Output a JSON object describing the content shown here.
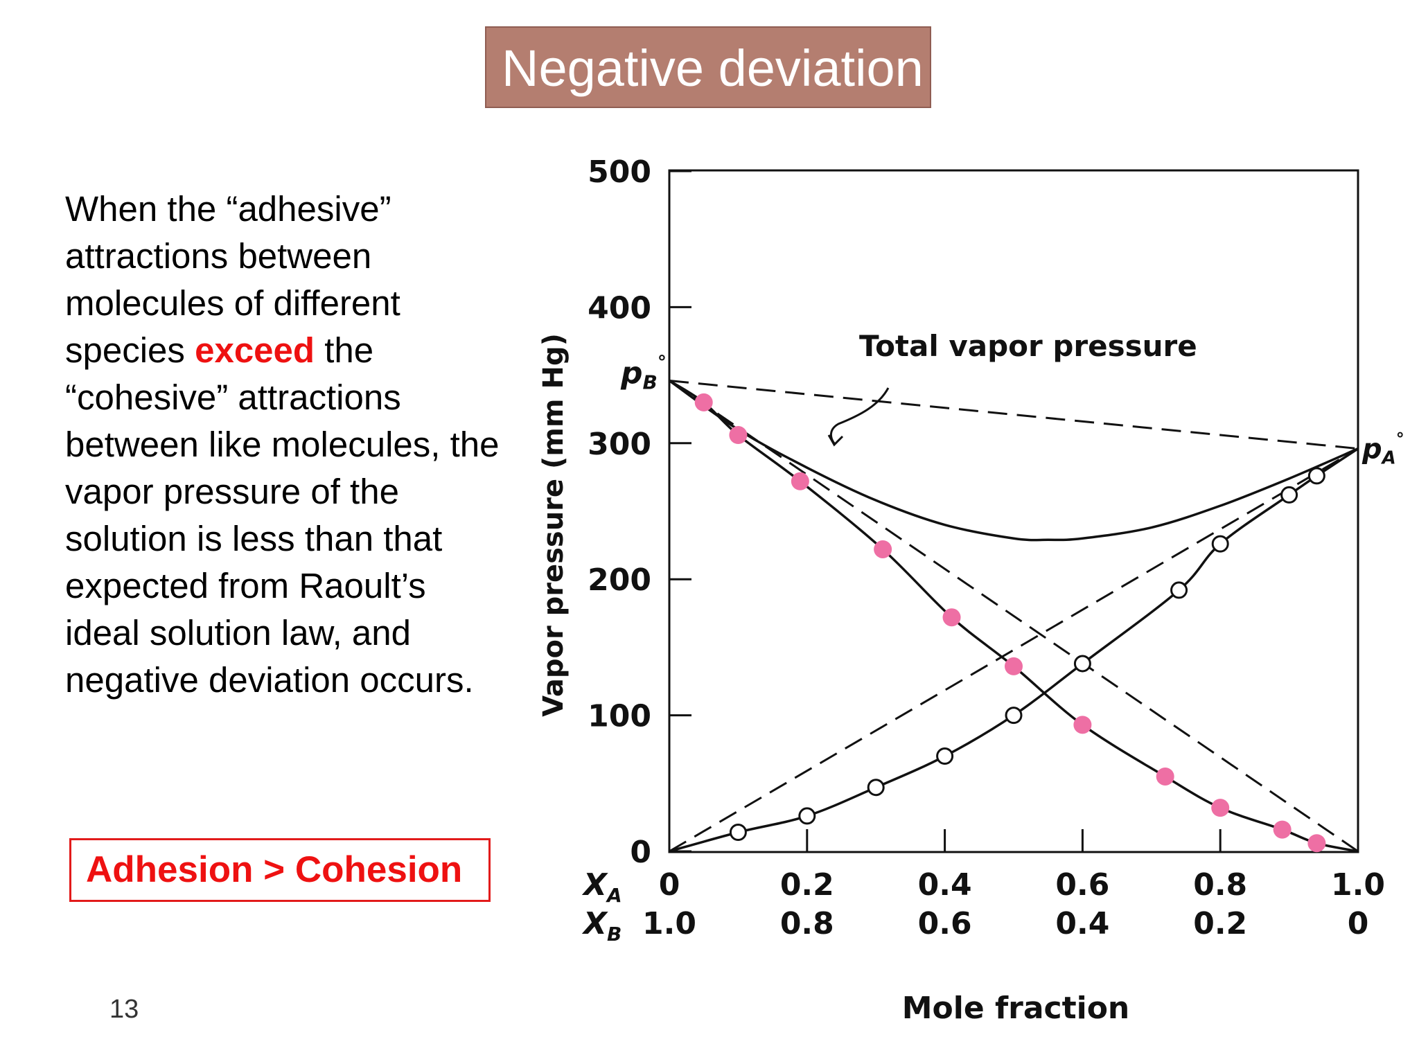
{
  "slide": {
    "title": "Negative deviation",
    "body": {
      "part1": "When the “adhesive” attractions between molecules of different species ",
      "highlight": "exceed",
      "part2": " the “cohesive” attractions between like molecules, the vapor pressure of the solution is less than that expected from Raoult’s ideal solution law, and negative deviation occurs."
    },
    "callout": "Adhesion > Cohesion",
    "page_number": "13"
  },
  "colors": {
    "title_bg": "#b47e70",
    "highlight": "#ee1111",
    "marker_pink": "#ee6fa4",
    "line": "#111111"
  },
  "chart_data": {
    "type": "line",
    "ylabel": "Vapor pressure (mm Hg)",
    "xlabel": "Mole fraction",
    "ylim": [
      0,
      500
    ],
    "xlim": [
      0,
      1
    ],
    "yticks": [
      "0",
      "100",
      "200",
      "300",
      "400",
      "500"
    ],
    "x_rows": [
      {
        "label": "X",
        "sub": "A",
        "ticks": [
          "0",
          "0.2",
          "0.4",
          "0.6",
          "0.8",
          "1.0"
        ]
      },
      {
        "label": "X",
        "sub": "B",
        "ticks": [
          "1.0",
          "0.8",
          "0.6",
          "0.4",
          "0.2",
          "0"
        ]
      }
    ],
    "annotations": {
      "total_label": "Total vapor pressure",
      "pB": {
        "main": "p",
        "sub": "B",
        "sup": "°",
        "value": 346
      },
      "pA": {
        "main": "p",
        "sub": "A",
        "sup": "°",
        "value": 296
      }
    },
    "series": [
      {
        "style": "ideal-dashed",
        "x": [
          0,
          1
        ],
        "values": [
          346,
          296
        ]
      },
      {
        "style": "ideal-dashed",
        "x": [
          0,
          1
        ],
        "values": [
          346,
          0
        ]
      },
      {
        "style": "ideal-dashed",
        "x": [
          0,
          1
        ],
        "values": [
          0,
          296
        ]
      },
      {
        "style": "solid",
        "x": [
          0,
          0.1,
          0.2,
          0.3,
          0.4,
          0.5,
          0.55,
          0.6,
          0.7,
          0.8,
          0.9,
          1.0
        ],
        "values": [
          346,
          310,
          282,
          258,
          240,
          230,
          229,
          230,
          238,
          254,
          274,
          296
        ]
      },
      {
        "style": "solid-pink-markers",
        "x": [
          0.05,
          0.1,
          0.19,
          0.31,
          0.41,
          0.5,
          0.6,
          0.72,
          0.8,
          0.89,
          0.94
        ],
        "values": [
          330,
          306,
          272,
          222,
          172,
          136,
          93,
          55,
          32,
          16,
          6
        ]
      },
      {
        "style": "solid-open-markers",
        "x": [
          0.1,
          0.2,
          0.3,
          0.4,
          0.5,
          0.6,
          0.74,
          0.8,
          0.9,
          0.94
        ],
        "values": [
          14,
          26,
          47,
          70,
          100,
          138,
          192,
          226,
          262,
          276
        ]
      }
    ]
  }
}
